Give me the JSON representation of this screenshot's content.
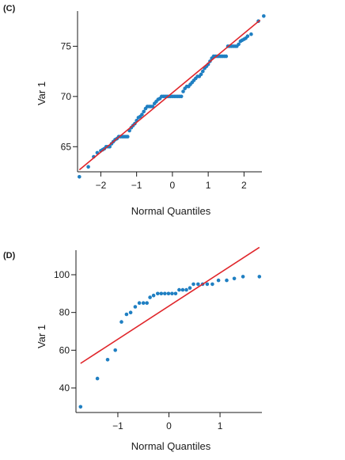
{
  "colors": {
    "points": "#1f7fc2",
    "fit_line": "#e0262b",
    "axis": "#1a1a1a"
  },
  "chart_data": [
    {
      "panel_label": "(C)",
      "type": "scatter",
      "xlabel": "Normal Quantiles",
      "ylabel": "Var 1",
      "xlim": [
        -2.65,
        2.5
      ],
      "ylim": [
        62.5,
        78.5
      ],
      "xticks": [
        "−2",
        "−1",
        "0",
        "1",
        "2"
      ],
      "xtick_values": [
        -2,
        -1,
        0,
        1,
        2
      ],
      "yticks": [
        "65",
        "70",
        "75"
      ],
      "ytick_values": [
        65,
        70,
        75
      ],
      "fit_line": {
        "x": [
          -2.6,
          2.45
        ],
        "y": [
          62.7,
          77.6
        ]
      },
      "points_x": [
        -2.6,
        -2.35,
        -2.2,
        -2.1,
        -2.0,
        -1.95,
        -1.9,
        -1.85,
        -1.8,
        -1.75,
        -1.7,
        -1.65,
        -1.6,
        -1.55,
        -1.5,
        -1.45,
        -1.4,
        -1.35,
        -1.3,
        -1.25,
        -1.2,
        -1.15,
        -1.1,
        -1.05,
        -1.0,
        -0.95,
        -0.9,
        -0.85,
        -0.8,
        -0.75,
        -0.7,
        -0.65,
        -0.6,
        -0.55,
        -0.5,
        -0.45,
        -0.4,
        -0.35,
        -0.3,
        -0.25,
        -0.2,
        -0.15,
        -0.1,
        -0.05,
        0.0,
        0.05,
        0.1,
        0.15,
        0.2,
        0.25,
        0.3,
        0.35,
        0.4,
        0.45,
        0.5,
        0.55,
        0.6,
        0.65,
        0.7,
        0.75,
        0.8,
        0.85,
        0.9,
        0.95,
        1.0,
        1.05,
        1.1,
        1.15,
        1.2,
        1.25,
        1.3,
        1.35,
        1.4,
        1.45,
        1.5,
        1.55,
        1.6,
        1.65,
        1.7,
        1.75,
        1.8,
        1.85,
        1.9,
        1.95,
        2.0,
        2.05,
        2.1,
        2.2,
        2.4,
        2.55
      ],
      "points_y": [
        62.0,
        63.0,
        64.0,
        64.4,
        64.6,
        64.7,
        64.8,
        65.0,
        65.0,
        65.0,
        65.3,
        65.5,
        65.7,
        65.8,
        66.0,
        66.0,
        66.0,
        66.0,
        66.0,
        66.0,
        66.6,
        66.9,
        67.1,
        67.3,
        67.6,
        67.9,
        68.0,
        68.2,
        68.5,
        68.8,
        69.0,
        69.0,
        69.0,
        69.0,
        69.3,
        69.5,
        69.7,
        69.8,
        70.0,
        70.0,
        70.0,
        70.0,
        70.0,
        70.0,
        70.0,
        70.0,
        70.0,
        70.0,
        70.0,
        70.0,
        70.5,
        70.8,
        71.0,
        71.0,
        71.2,
        71.4,
        71.6,
        71.8,
        72.0,
        72.0,
        72.2,
        72.5,
        72.8,
        73.0,
        73.2,
        73.5,
        73.8,
        74.0,
        74.0,
        74.0,
        74.0,
        74.0,
        74.0,
        74.0,
        74.0,
        75.0,
        75.0,
        75.0,
        75.0,
        75.0,
        75.0,
        75.2,
        75.5,
        75.6,
        75.7,
        75.8,
        76.0,
        76.2,
        77.5,
        78.0
      ]
    },
    {
      "panel_label": "(D)",
      "type": "scatter",
      "xlabel": "Normal Quantiles",
      "ylabel": "Var 1",
      "xlim": [
        -1.82,
        1.82
      ],
      "ylim": [
        27,
        113
      ],
      "xticks": [
        "−1",
        "0",
        "1"
      ],
      "xtick_values": [
        -1,
        0,
        1
      ],
      "yticks": [
        "40",
        "60",
        "80",
        "100"
      ],
      "ytick_values": [
        40,
        60,
        80,
        100
      ],
      "fit_line": {
        "x": [
          -1.73,
          1.77
        ],
        "y": [
          53,
          114.5
        ]
      },
      "points_x": [
        -1.73,
        -1.4,
        -1.2,
        -1.05,
        -0.93,
        -0.83,
        -0.75,
        -0.66,
        -0.58,
        -0.5,
        -0.43,
        -0.37,
        -0.3,
        -0.22,
        -0.15,
        -0.08,
        -0.01,
        0.06,
        0.13,
        0.2,
        0.27,
        0.34,
        0.41,
        0.48,
        0.57,
        0.66,
        0.75,
        0.85,
        0.97,
        1.13,
        1.28,
        1.45,
        1.77
      ],
      "points_y": [
        30,
        45,
        55,
        60,
        75,
        79,
        80,
        83,
        85,
        85,
        85,
        88,
        89,
        90,
        90,
        90,
        90,
        90,
        90,
        92,
        92,
        92,
        93,
        95,
        95,
        95,
        95,
        95,
        97,
        97,
        98,
        99,
        99
      ]
    }
  ]
}
